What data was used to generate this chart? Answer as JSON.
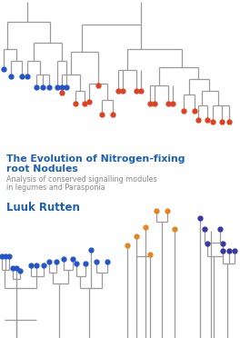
{
  "title_line1": "The Evolution of Nitrogen-fixing",
  "title_line2": "root Nodules",
  "subtitle_line1": "Analysis of conserved signalling modules",
  "subtitle_line2": "in legumes and Parasponia",
  "author": "Luuk Rutten",
  "title_color": "#1a5fb4",
  "author_color": "#1a5fb4",
  "subtitle_color": "#888888",
  "bg_color": "#ffffff",
  "tree_color": "#999999",
  "dot_red": "#e04020",
  "dot_blue": "#2255cc",
  "dot_orange": "#e08820",
  "dot_purple": "#3535aa"
}
